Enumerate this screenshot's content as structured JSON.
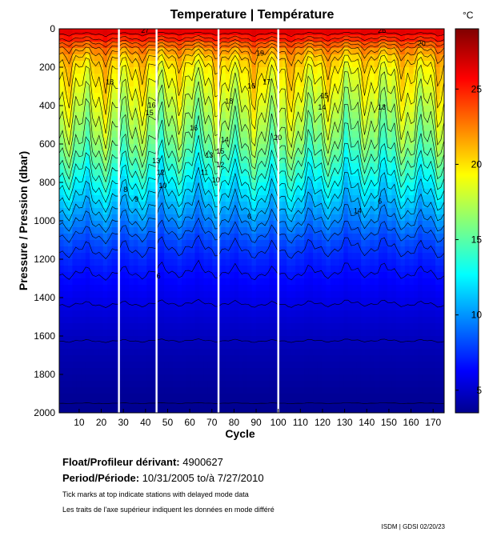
{
  "chart_data": {
    "type": "heatmap",
    "title": "Temperature | Température",
    "xlabel": "Cycle",
    "ylabel": "Pressure / Pression (dbar)",
    "xlim": [
      1,
      175
    ],
    "ylim": [
      0,
      2000
    ],
    "y_inverted": true,
    "xticks": [
      10,
      20,
      30,
      40,
      50,
      60,
      70,
      80,
      90,
      100,
      110,
      120,
      130,
      140,
      150,
      160,
      170
    ],
    "yticks": [
      0,
      200,
      400,
      600,
      800,
      1000,
      1200,
      1400,
      1600,
      1800,
      2000
    ],
    "colorbar": {
      "unit": "°C",
      "range": [
        3.5,
        29
      ],
      "ticks": [
        5,
        10,
        15,
        20,
        25
      ],
      "colormap": "jet"
    },
    "profile": {
      "pressures": [
        0,
        50,
        100,
        150,
        200,
        300,
        400,
        500,
        600,
        700,
        800,
        900,
        1000,
        1100,
        1200,
        1300,
        1400,
        1500,
        1600,
        1700,
        1800,
        1900,
        2000
      ],
      "temperatures": [
        27,
        25,
        22.5,
        21,
        20,
        19,
        18,
        17,
        16,
        14.5,
        13,
        11.5,
        10,
        8.5,
        7.5,
        6.8,
        6.2,
        5.6,
        5.1,
        4.7,
        4.4,
        4.1,
        3.9
      ]
    },
    "missing_cycles": [
      28,
      45,
      73,
      100
    ],
    "contour_labels": [
      {
        "text": "27",
        "cycle": 38,
        "p": 20
      },
      {
        "text": "26",
        "cycle": 145,
        "p": 20
      },
      {
        "text": "20",
        "cycle": 163,
        "p": 90
      },
      {
        "text": "19",
        "cycle": 90,
        "p": 140
      },
      {
        "text": "18",
        "cycle": 22,
        "p": 290
      },
      {
        "text": "18",
        "cycle": 76,
        "p": 390
      },
      {
        "text": "17",
        "cycle": 93,
        "p": 290
      },
      {
        "text": "16",
        "cycle": 86,
        "p": 310
      },
      {
        "text": "15",
        "cycle": 119,
        "p": 360
      },
      {
        "text": "14",
        "cycle": 118,
        "p": 420
      },
      {
        "text": "13",
        "cycle": 145,
        "p": 420
      },
      {
        "text": "16",
        "cycle": 41,
        "p": 410
      },
      {
        "text": "15",
        "cycle": 40,
        "p": 450
      },
      {
        "text": "16",
        "cycle": 60,
        "p": 530
      },
      {
        "text": "15",
        "cycle": 72,
        "p": 650
      },
      {
        "text": "14",
        "cycle": 74,
        "p": 590
      },
      {
        "text": "13",
        "cycle": 67,
        "p": 670
      },
      {
        "text": "12",
        "cycle": 72,
        "p": 720
      },
      {
        "text": "11",
        "cycle": 65,
        "p": 760
      },
      {
        "text": "10",
        "cycle": 70,
        "p": 800
      },
      {
        "text": "13",
        "cycle": 43,
        "p": 700
      },
      {
        "text": "12",
        "cycle": 45,
        "p": 760
      },
      {
        "text": "10",
        "cycle": 46,
        "p": 830
      },
      {
        "text": "9",
        "cycle": 35,
        "p": 900
      },
      {
        "text": "8",
        "cycle": 30,
        "p": 850
      },
      {
        "text": "6",
        "cycle": 45,
        "p": 1300
      },
      {
        "text": "20",
        "cycle": 98,
        "p": 580
      },
      {
        "text": "14",
        "cycle": 134,
        "p": 960
      },
      {
        "text": "6",
        "cycle": 86,
        "p": 990
      },
      {
        "text": "6",
        "cycle": 145,
        "p": 910
      }
    ]
  },
  "info": {
    "float_label": "Float/Profileur dérivant:",
    "float_id": "4900627",
    "period_label": "Period/Période:",
    "period_start": "10/31/2005",
    "period_to": "to/à",
    "period_end": "7/27/2010",
    "note_en": "Tick marks at top indicate stations with delayed mode data",
    "note_fr": "Les traits de l'axe supérieur indiquent les données en mode différé"
  },
  "credit": "ISDM | GDSI  02/20/23"
}
